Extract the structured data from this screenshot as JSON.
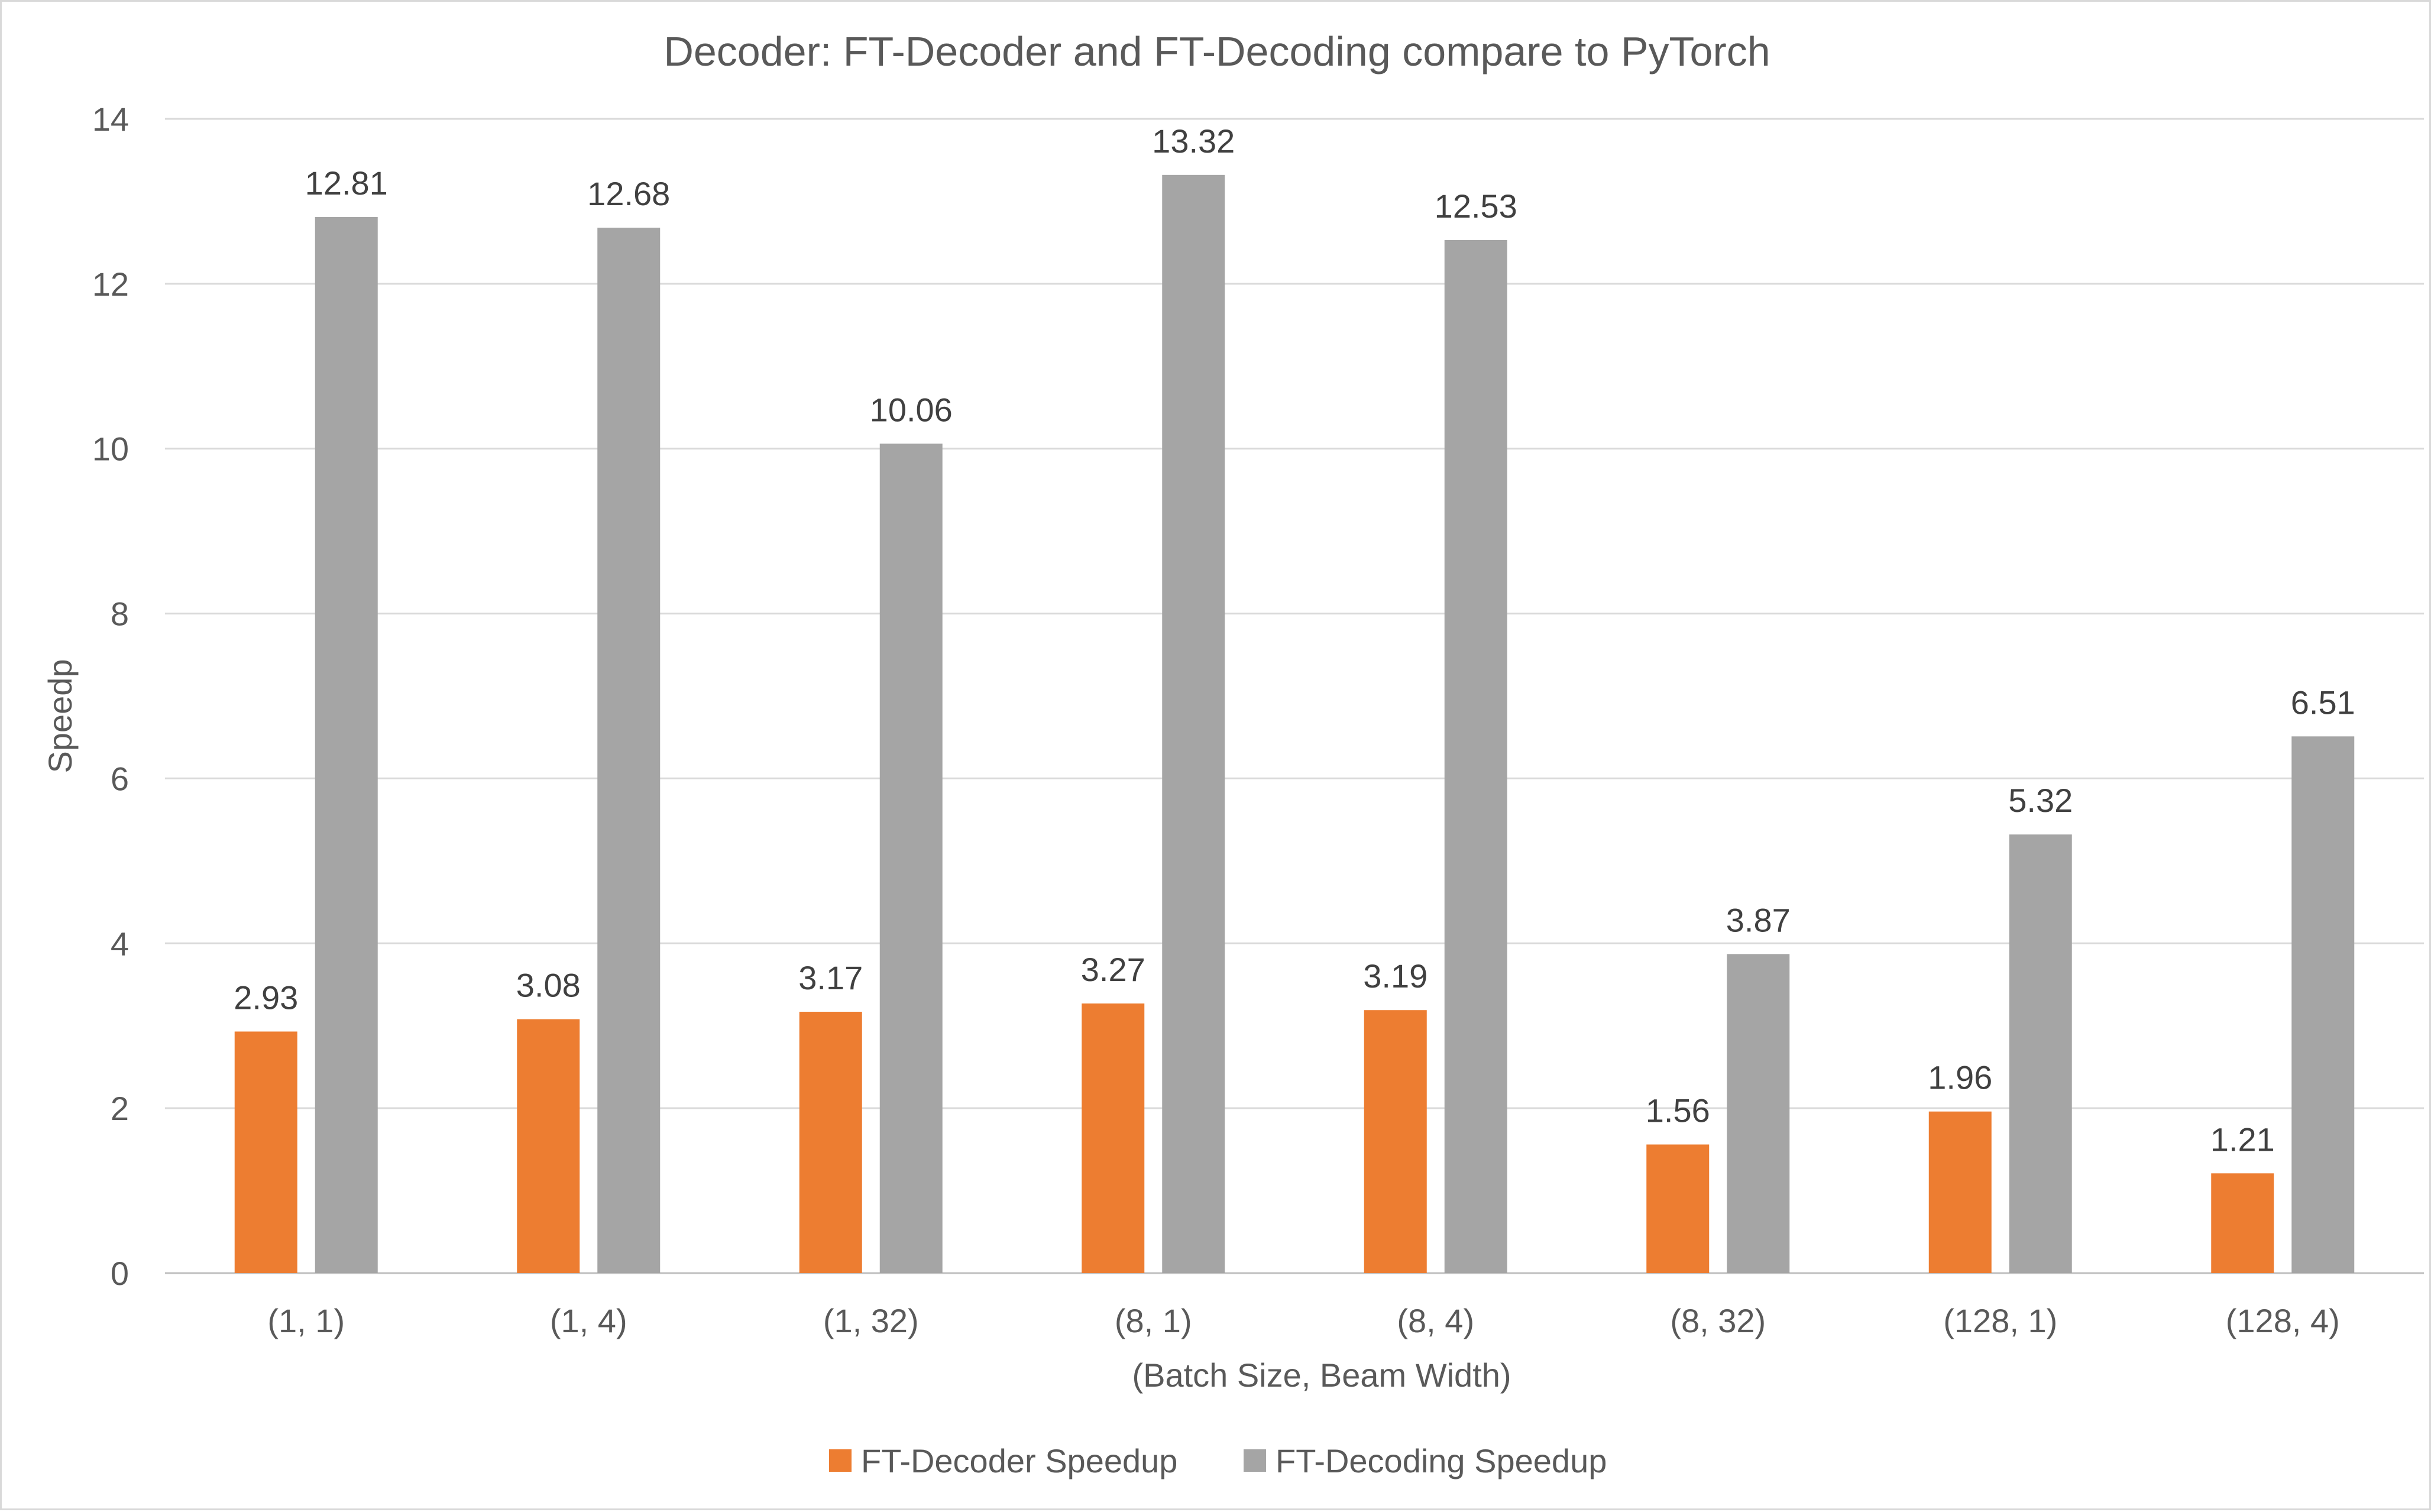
{
  "chart_data": {
    "type": "bar",
    "title": "Decoder: FT-Decoder and FT-Decoding compare to PyTorch",
    "xlabel": "(Batch Size, Beam Width)",
    "ylabel": "Speedp",
    "ylim": [
      0,
      14
    ],
    "yticks": [
      0,
      2,
      4,
      6,
      8,
      10,
      12,
      14
    ],
    "grid": true,
    "legend_position": "bottom",
    "categories": [
      "(1, 1)",
      "(1, 4)",
      "(1, 32)",
      "(8, 1)",
      "(8, 4)",
      "(8, 32)",
      "(128, 1)",
      "(128, 4)"
    ],
    "series": [
      {
        "name": "FT-Decoder Speedup",
        "color": "#ed7d31",
        "values": [
          2.93,
          3.08,
          3.17,
          3.27,
          3.19,
          1.56,
          1.96,
          1.21
        ]
      },
      {
        "name": "FT-Decoding Speedup",
        "color": "#a5a5a5",
        "values": [
          12.81,
          12.68,
          10.06,
          13.32,
          12.53,
          3.87,
          5.32,
          6.51
        ]
      }
    ]
  }
}
